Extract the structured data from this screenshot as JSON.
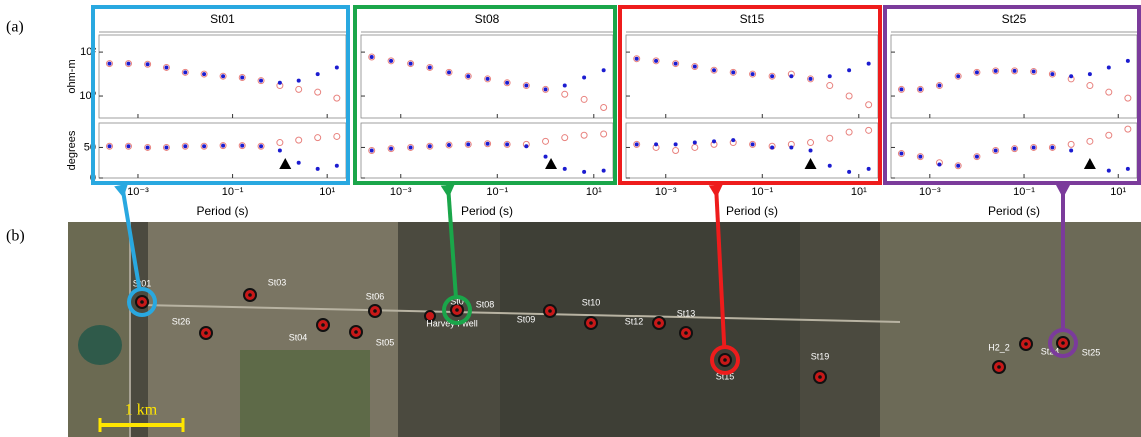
{
  "chart_data": [
    {
      "type": "scatter",
      "title": "St01",
      "xlabel": "Period (s)",
      "frame_color": "#29a8e0",
      "log_x": true,
      "x": [
        0.00025,
        0.00063,
        0.0016,
        0.004,
        0.01,
        0.025,
        0.063,
        0.16,
        0.4,
        1,
        2.5,
        6.3,
        16
      ],
      "xlim": [
        0.00015,
        25
      ],
      "xticks": [
        {
          "value": 0.001,
          "label": "10⁻³"
        },
        {
          "value": 0.1,
          "label": "10⁻¹"
        },
        {
          "value": 10,
          "label": "10¹"
        }
      ],
      "panels": [
        {
          "ylabel": "ohm-m",
          "log_y": true,
          "ylim": [
            0.1,
            600
          ],
          "yticks": [
            {
              "value": 1,
              "label": "10⁰"
            },
            {
              "value": 100,
              "label": "10²"
            }
          ],
          "series": [
            {
              "color": "#e8827e",
              "values": [
                30,
                30,
                28,
                20,
                12,
                10,
                8,
                7,
                5,
                3,
                2,
                1.5,
                0.8
              ]
            },
            {
              "color": "#1c1cd0",
              "values": [
                30,
                30,
                28,
                20,
                12,
                10,
                8,
                7,
                5,
                4,
                5,
                10,
                20
              ]
            }
          ]
        },
        {
          "ylabel": "degrees",
          "log_y": false,
          "ylim": [
            0,
            90
          ],
          "yticks": [
            0,
            50
          ],
          "triangle_x": 1.3,
          "series": [
            {
              "color": "#e8827e",
              "values": [
                52,
                52,
                50,
                50,
                52,
                52,
                53,
                53,
                52,
                58,
                62,
                66,
                68
              ]
            },
            {
              "color": "#1c1cd0",
              "values": [
                52,
                52,
                50,
                50,
                52,
                52,
                53,
                53,
                52,
                45,
                25,
                15,
                20
              ]
            }
          ]
        }
      ]
    },
    {
      "type": "scatter",
      "title": "St08",
      "xlabel": "Period (s)",
      "frame_color": "#1aa64a",
      "log_x": true,
      "x": [
        0.00025,
        0.00063,
        0.0016,
        0.004,
        0.01,
        0.025,
        0.063,
        0.16,
        0.4,
        1,
        2.5,
        6.3,
        16
      ],
      "xlim": [
        0.00015,
        25
      ],
      "xticks": [
        {
          "value": 0.001,
          "label": "10⁻³"
        },
        {
          "value": 0.1,
          "label": "10⁻¹"
        },
        {
          "value": 10,
          "label": "10¹"
        }
      ],
      "panels": [
        {
          "log_y": true,
          "ylim": [
            0.1,
            600
          ],
          "yticks": [
            {
              "value": 1,
              "label": "10⁰"
            },
            {
              "value": 100,
              "label": "10²"
            }
          ],
          "series": [
            {
              "color": "#e8827e",
              "values": [
                60,
                40,
                30,
                20,
                12,
                8,
                6,
                4,
                3,
                2,
                1.2,
                0.7,
                0.3
              ]
            },
            {
              "color": "#1c1cd0",
              "values": [
                60,
                40,
                30,
                20,
                12,
                8,
                6,
                4,
                3,
                2,
                3,
                7,
                15
              ]
            }
          ]
        },
        {
          "log_y": false,
          "ylim": [
            0,
            90
          ],
          "yticks": [
            0,
            50
          ],
          "triangle_x": 1.3,
          "series": [
            {
              "color": "#e8827e",
              "values": [
                45,
                48,
                50,
                52,
                54,
                55,
                56,
                55,
                55,
                60,
                66,
                70,
                72
              ]
            },
            {
              "color": "#1c1cd0",
              "values": [
                45,
                48,
                50,
                52,
                54,
                55,
                56,
                55,
                52,
                35,
                15,
                10,
                12
              ]
            }
          ]
        }
      ]
    },
    {
      "type": "scatter",
      "title": "St15",
      "xlabel": "Period (s)",
      "frame_color": "#ee1c1c",
      "log_x": true,
      "x": [
        0.00025,
        0.00063,
        0.0016,
        0.004,
        0.01,
        0.025,
        0.063,
        0.16,
        0.4,
        1,
        2.5,
        6.3,
        16
      ],
      "xlim": [
        0.00015,
        25
      ],
      "xticks": [
        {
          "value": 0.001,
          "label": "10⁻³"
        },
        {
          "value": 0.1,
          "label": "10⁻¹"
        },
        {
          "value": 10,
          "label": "10¹"
        }
      ],
      "panels": [
        {
          "log_y": true,
          "ylim": [
            0.1,
            600
          ],
          "yticks": [
            {
              "value": 1,
              "label": "10⁰"
            },
            {
              "value": 100,
              "label": "10²"
            }
          ],
          "series": [
            {
              "color": "#e8827e",
              "values": [
                50,
                40,
                30,
                22,
                15,
                12,
                10,
                8,
                10,
                6,
                3,
                1,
                0.4
              ]
            },
            {
              "color": "#1c1cd0",
              "values": [
                50,
                40,
                30,
                22,
                15,
                12,
                10,
                8,
                8,
                6,
                8,
                15,
                30
              ]
            }
          ]
        },
        {
          "log_y": false,
          "ylim": [
            0,
            90
          ],
          "yticks": [
            0,
            50
          ],
          "triangle_x": 1,
          "series": [
            {
              "color": "#e8827e",
              "values": [
                55,
                50,
                45,
                50,
                55,
                58,
                55,
                52,
                55,
                58,
                65,
                75,
                78
              ]
            },
            {
              "color": "#1c1cd0",
              "values": [
                55,
                55,
                55,
                58,
                60,
                62,
                55,
                50,
                50,
                45,
                20,
                10,
                15
              ]
            }
          ]
        }
      ]
    },
    {
      "type": "scatter",
      "title": "St25",
      "xlabel": "Period (s)",
      "frame_color": "#7b3b9b",
      "log_x": true,
      "x": [
        0.00025,
        0.00063,
        0.0016,
        0.004,
        0.01,
        0.025,
        0.063,
        0.16,
        0.4,
        1,
        2.5,
        6.3,
        16
      ],
      "xlim": [
        0.00015,
        25
      ],
      "xticks": [
        {
          "value": 0.001,
          "label": "10⁻³"
        },
        {
          "value": 0.1,
          "label": "10⁻¹"
        },
        {
          "value": 10,
          "label": "10¹"
        }
      ],
      "panels": [
        {
          "log_y": true,
          "ylim": [
            0.1,
            600
          ],
          "yticks": [
            {
              "value": 1,
              "label": "10⁰"
            },
            {
              "value": 100,
              "label": "10²"
            }
          ],
          "series": [
            {
              "color": "#e8827e",
              "values": [
                2,
                2,
                3,
                8,
                12,
                14,
                14,
                13,
                10,
                6,
                3,
                1.5,
                0.8
              ]
            },
            {
              "color": "#1c1cd0",
              "values": [
                2,
                2,
                3,
                8,
                12,
                14,
                14,
                13,
                10,
                8,
                10,
                20,
                40
              ]
            }
          ]
        },
        {
          "log_y": false,
          "ylim": [
            0,
            90
          ],
          "yticks": [
            0,
            50
          ],
          "triangle_x": 2.5,
          "series": [
            {
              "color": "#e8827e",
              "values": [
                40,
                35,
                25,
                20,
                35,
                45,
                48,
                50,
                50,
                55,
                60,
                70,
                80
              ]
            },
            {
              "color": "#1c1cd0",
              "values": [
                40,
                35,
                22,
                20,
                35,
                45,
                48,
                50,
                50,
                45,
                25,
                12,
                15
              ]
            }
          ]
        }
      ]
    }
  ],
  "panel_labels": [
    "(a)",
    "(b)"
  ],
  "map": {
    "stations": [
      "St01",
      "St03",
      "St26",
      "St04",
      "St05",
      "St06",
      "St0",
      "St08",
      "St09",
      "St10",
      "St12",
      "St13",
      "St15",
      "St19",
      "H2_2",
      "St24",
      "St25"
    ],
    "well_label": "Harvey I well",
    "scale_label": "1 km"
  }
}
